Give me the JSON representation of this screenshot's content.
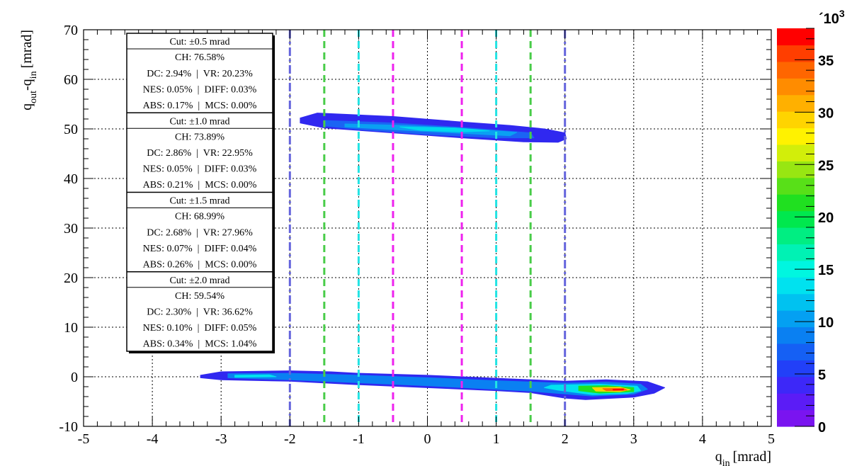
{
  "chart_data": {
    "type": "heatmap",
    "x_range": [
      -5,
      5
    ],
    "y_range": [
      -10,
      70
    ],
    "x_ticks": [
      "-5",
      "-4",
      "-3",
      "-2",
      "-1",
      "0",
      "1",
      "2",
      "3",
      "4",
      "5"
    ],
    "y_ticks": [
      "-10",
      "0",
      "10",
      "20",
      "30",
      "40",
      "50",
      "60",
      "70"
    ],
    "xlabel": {
      "main": "q",
      "sub": "in",
      "unit": "[mrad]"
    },
    "ylabel": {
      "main": "q",
      "sub1": "out",
      "mid": "-q",
      "sub2": "in",
      "unit": "[mrad]"
    },
    "grid": true,
    "colorbar": {
      "range": [
        0,
        38
      ],
      "ticks": [
        "0",
        "5",
        "10",
        "15",
        "20",
        "25",
        "30",
        "35"
      ],
      "exponent_label": "´10",
      "exponent_power": "3",
      "colors": [
        "#7a14f0",
        "#5b1cf6",
        "#3d28f8",
        "#2240f8",
        "#1560f4",
        "#0a80f2",
        "#04a0f2",
        "#00c2f0",
        "#00e2ef",
        "#00f6e0",
        "#00f2b4",
        "#00ee82",
        "#00e84e",
        "#20e020",
        "#58e018",
        "#98e612",
        "#d2ee0a",
        "#fff200",
        "#ffd400",
        "#ffb000",
        "#ff8c00",
        "#ff6600",
        "#ff3e00",
        "#ff0000"
      ]
    },
    "vertical_lines": [
      {
        "x": -2.0,
        "color": "#6464dc",
        "style": "dashdot"
      },
      {
        "x": -1.5,
        "color": "#48cc48",
        "style": "dash"
      },
      {
        "x": -1.0,
        "color": "#22e4e4",
        "style": "dash"
      },
      {
        "x": -0.5,
        "color": "#ee22ee",
        "style": "dash"
      },
      {
        "x": 0.5,
        "color": "#ee22ee",
        "style": "dash"
      },
      {
        "x": 1.0,
        "color": "#22e4e4",
        "style": "dash"
      },
      {
        "x": 1.5,
        "color": "#48cc48",
        "style": "dash"
      },
      {
        "x": 2.0,
        "color": "#6464dc",
        "style": "dashdot"
      }
    ],
    "contours": [
      {
        "name": "upper band",
        "levels": [
          {
            "color": "#3028f0",
            "polygon": [
              [
                -1.85,
                52.2
              ],
              [
                -1.6,
                53.2
              ],
              [
                -0.5,
                52.5
              ],
              [
                0.5,
                51.4
              ],
              [
                1.2,
                50.7
              ],
              [
                1.7,
                50.0
              ],
              [
                2.0,
                49.2
              ],
              [
                2.02,
                48.0
              ],
              [
                1.9,
                47.3
              ],
              [
                1.4,
                47.4
              ],
              [
                0.5,
                48.2
              ],
              [
                -0.5,
                49.2
              ],
              [
                -1.5,
                50.2
              ],
              [
                -1.85,
                51.2
              ]
            ]
          },
          {
            "color": "#1a64f4",
            "polygon": [
              [
                -1.5,
                51.7
              ],
              [
                -0.5,
                51.2
              ],
              [
                0.5,
                50.3
              ],
              [
                1.5,
                49.2
              ],
              [
                1.55,
                48.2
              ],
              [
                1.0,
                48.2
              ],
              [
                0.0,
                48.9
              ],
              [
                -1.0,
                49.9
              ],
              [
                -1.5,
                50.6
              ]
            ]
          },
          {
            "color": "#0aa0f2",
            "polygon": [
              [
                -1.2,
                51.0
              ],
              [
                -0.3,
                50.7
              ],
              [
                0.6,
                50.0
              ],
              [
                1.3,
                49.3
              ],
              [
                1.2,
                48.6
              ],
              [
                0.5,
                49.1
              ],
              [
                -0.3,
                49.7
              ],
              [
                -1.2,
                50.4
              ]
            ]
          },
          {
            "color": "#00d8ee",
            "polygon": [
              [
                -0.4,
                50.4
              ],
              [
                0.4,
                50.2
              ],
              [
                0.9,
                49.6
              ],
              [
                0.5,
                49.4
              ],
              [
                -0.1,
                49.7
              ]
            ]
          }
        ]
      },
      {
        "name": "lower band",
        "levels": [
          {
            "color": "#3028f0",
            "polygon": [
              [
                -3.3,
                0.3
              ],
              [
                -3.0,
                1.0
              ],
              [
                -2.0,
                1.2
              ],
              [
                -1.4,
                1.0
              ],
              [
                -1.0,
                0.7
              ],
              [
                0.0,
                0.3
              ],
              [
                1.0,
                -0.3
              ],
              [
                2.0,
                -0.9
              ],
              [
                2.6,
                -0.6
              ],
              [
                3.2,
                -1.0
              ],
              [
                3.45,
                -2.2
              ],
              [
                3.3,
                -3.3
              ],
              [
                3.0,
                -4.1
              ],
              [
                2.3,
                -4.6
              ],
              [
                2.0,
                -4.3
              ],
              [
                1.5,
                -3.2
              ],
              [
                1.0,
                -2.8
              ],
              [
                0.0,
                -2.2
              ],
              [
                -1.0,
                -1.6
              ],
              [
                -2.0,
                -0.9
              ],
              [
                -3.0,
                -0.6
              ],
              [
                -3.3,
                -0.2
              ]
            ]
          },
          {
            "color": "#0a80f2",
            "polygon": [
              [
                -2.9,
                0.6
              ],
              [
                -2.0,
                0.7
              ],
              [
                -1.0,
                0.3
              ],
              [
                0.0,
                -0.2
              ],
              [
                1.0,
                -0.8
              ],
              [
                2.0,
                -1.3
              ],
              [
                2.6,
                -1.1
              ],
              [
                3.1,
                -1.5
              ],
              [
                3.2,
                -2.5
              ],
              [
                3.0,
                -3.5
              ],
              [
                2.4,
                -3.9
              ],
              [
                1.5,
                -2.9
              ],
              [
                0.0,
                -1.8
              ],
              [
                -1.0,
                -1.2
              ],
              [
                -2.0,
                -0.6
              ],
              [
                -2.9,
                -0.2
              ]
            ]
          },
          {
            "color": "#00e2ef",
            "polygon": [
              [
                -2.8,
                0.3
              ],
              [
                -2.3,
                0.4
              ],
              [
                -2.2,
                0.0
              ],
              [
                -2.8,
                -0.1
              ]
            ]
          },
          {
            "color": "#00e2ef",
            "polygon": [
              [
                1.8,
                -1.7
              ],
              [
                2.5,
                -1.5
              ],
              [
                3.05,
                -1.9
              ],
              [
                3.1,
                -2.8
              ],
              [
                2.9,
                -3.4
              ],
              [
                2.4,
                -3.6
              ],
              [
                1.9,
                -2.7
              ],
              [
                1.7,
                -2.2
              ]
            ]
          },
          {
            "color": "#20e020",
            "polygon": [
              [
                2.2,
                -1.9
              ],
              [
                2.6,
                -1.8
              ],
              [
                3.0,
                -2.2
              ],
              [
                3.0,
                -3.0
              ],
              [
                2.5,
                -3.3
              ],
              [
                2.2,
                -2.8
              ]
            ]
          },
          {
            "color": "#ffd400",
            "polygon": [
              [
                2.4,
                -2.2
              ],
              [
                2.8,
                -2.1
              ],
              [
                2.95,
                -2.6
              ],
              [
                2.8,
                -3.0
              ],
              [
                2.45,
                -2.9
              ]
            ]
          },
          {
            "color": "#ff6600",
            "polygon": [
              [
                2.55,
                -2.4
              ],
              [
                2.85,
                -2.35
              ],
              [
                2.9,
                -2.7
              ],
              [
                2.6,
                -2.8
              ]
            ]
          },
          {
            "color": "#ff0000",
            "polygon": [
              [
                2.7,
                -2.5
              ],
              [
                2.85,
                -2.5
              ],
              [
                2.85,
                -2.7
              ],
              [
                2.7,
                -2.7
              ]
            ]
          }
        ]
      }
    ],
    "stats_box": [
      {
        "cut": "Cut: ±0.5 mrad",
        "lines": [
          "CH: 76.58%",
          "DC: 2.94%  |  VR: 20.23%",
          "NES: 0.05%  |  DIFF: 0.03%",
          "ABS: 0.17%  |  MCS: 0.00%"
        ]
      },
      {
        "cut": "Cut: ±1.0 mrad",
        "lines": [
          "CH: 73.89%",
          "DC: 2.86%  |  VR: 22.95%",
          "NES: 0.05%  |  DIFF: 0.03%",
          "ABS: 0.21%  |  MCS: 0.00%"
        ]
      },
      {
        "cut": "Cut: ±1.5 mrad",
        "lines": [
          "CH: 68.99%",
          "DC: 2.68%  |  VR: 27.96%",
          "NES: 0.07%  |  DIFF: 0.04%",
          "ABS: 0.26%  |  MCS: 0.00%"
        ]
      },
      {
        "cut": "Cut: ±2.0 mrad",
        "lines": [
          "CH: 59.54%",
          "DC: 2.30%  |  VR: 36.62%",
          "NES: 0.10%  |  DIFF: 0.05%",
          "ABS: 0.34%  |  MCS: 1.04%"
        ]
      }
    ]
  }
}
